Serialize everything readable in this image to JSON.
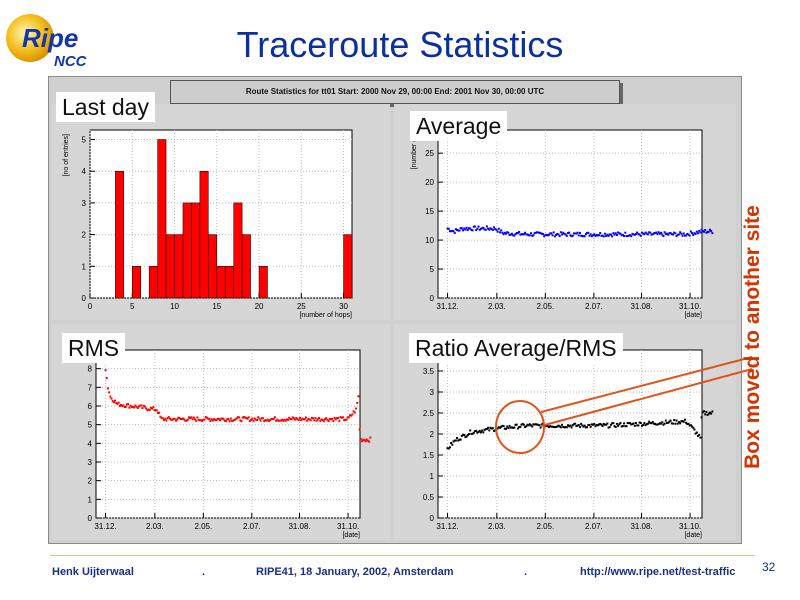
{
  "logo": {
    "ripe": "Ripe",
    "ncc": "NCC"
  },
  "title": "Traceroute Statistics",
  "root_title": "Route Statistics for tt01  Start: 2000 Nov 29,  00:00  End: 2001 Nov 30, 00:00 UTC",
  "labels": {
    "last_day": "Last day",
    "average": "Average",
    "rms": "RMS",
    "ratio": "Ratio Average/RMS"
  },
  "annotation": "Box moved to another site",
  "colors": {
    "title": "#0c2fa0",
    "bars": "#ff0000",
    "average": "#0000ff",
    "rms": "#ff0000",
    "ratio": "#000000",
    "annotation": "#d43500",
    "footer": "#1a2f8a"
  },
  "footer": {
    "author": "Henk Uijterwaal",
    "sep1": ".",
    "event": "RIPE41, 18 January, 2002, Amsterdam",
    "sep2": ".",
    "url": "http://www.ripe.net/test-traffic",
    "page": "32"
  },
  "chart_data": [
    {
      "type": "bar",
      "ylabel": "[no of entries]",
      "xlabel": "[number of hops]",
      "xlim": [
        0,
        31
      ],
      "ylim": [
        0,
        5.3
      ],
      "xticks": [
        0,
        5,
        10,
        15,
        20,
        25,
        30
      ],
      "yticks": [
        0,
        1,
        2,
        3,
        4,
        5
      ],
      "bins": [
        {
          "x": 3,
          "value": 4
        },
        {
          "x": 5,
          "value": 1
        },
        {
          "x": 7,
          "value": 1
        },
        {
          "x": 8,
          "value": 5
        },
        {
          "x": 9,
          "value": 2
        },
        {
          "x": 10,
          "value": 2
        },
        {
          "x": 11,
          "value": 3
        },
        {
          "x": 12,
          "value": 3
        },
        {
          "x": 13,
          "value": 4
        },
        {
          "x": 14,
          "value": 2
        },
        {
          "x": 15,
          "value": 1
        },
        {
          "x": 16,
          "value": 1
        },
        {
          "x": 17,
          "value": 3
        },
        {
          "x": 18,
          "value": 2
        },
        {
          "x": 20,
          "value": 1
        },
        {
          "x": 30,
          "value": 2
        }
      ]
    },
    {
      "type": "scatter",
      "ylabel": "[number of]",
      "xlabel": "[date]",
      "xticks": [
        "31.12.",
        "2.03.",
        "2.05.",
        "2.07.",
        "31.08.",
        "31.10."
      ],
      "ylim": [
        0,
        29
      ],
      "yticks": [
        0,
        5,
        10,
        15,
        20,
        25
      ],
      "x_span": [
        -12,
        320
      ],
      "x_tick_days": [
        0,
        62,
        123,
        184,
        244,
        305
      ],
      "x_range": [
        0,
        333
      ],
      "anchors": [
        [
          0,
          12
        ],
        [
          8,
          11.5
        ],
        [
          20,
          12
        ],
        [
          60,
          12
        ],
        [
          70,
          11.2
        ],
        [
          100,
          11
        ],
        [
          200,
          11
        ],
        [
          250,
          11
        ],
        [
          300,
          11
        ],
        [
          320,
          11.5
        ]
      ]
    },
    {
      "type": "scatter",
      "ylabel": "",
      "xlabel": "[date]",
      "xticks": [
        "31.12.",
        "2.03.",
        "2.05.",
        "2.07.",
        "31.08.",
        "31.10."
      ],
      "ylim": [
        0,
        9
      ],
      "yticks": [
        0,
        1,
        2,
        3,
        4,
        5,
        6,
        7,
        8
      ],
      "x_span": [
        -12,
        320
      ],
      "x_tick_days": [
        0,
        62,
        123,
        184,
        244,
        305
      ],
      "x_range": [
        0,
        333
      ],
      "anchors": [
        [
          0,
          8
        ],
        [
          3,
          7
        ],
        [
          6,
          6.5
        ],
        [
          15,
          6.1
        ],
        [
          50,
          5.9
        ],
        [
          65,
          5.8
        ],
        [
          70,
          5.3
        ],
        [
          200,
          5.3
        ],
        [
          240,
          5.3
        ],
        [
          305,
          5.3
        ],
        [
          315,
          5.8
        ],
        [
          318,
          6.5
        ],
        [
          320,
          4.2
        ]
      ]
    },
    {
      "type": "scatter",
      "ylabel": "",
      "xlabel": "[date]",
      "xticks": [
        "31.12.",
        "2.03.",
        "2.05.",
        "2.07.",
        "31.08.",
        "31.10."
      ],
      "ylim": [
        0,
        4
      ],
      "yticks": [
        0,
        0.5,
        1,
        1.5,
        2,
        2.5,
        3,
        3.5
      ],
      "x_span": [
        -12,
        320
      ],
      "x_tick_days": [
        0,
        62,
        123,
        184,
        244,
        305
      ],
      "x_range": [
        0,
        333
      ],
      "anchors": [
        [
          0,
          1.65
        ],
        [
          10,
          1.85
        ],
        [
          30,
          2.05
        ],
        [
          50,
          2.1
        ],
        [
          70,
          2.15
        ],
        [
          100,
          2.2
        ],
        [
          150,
          2.2
        ],
        [
          200,
          2.2
        ],
        [
          250,
          2.25
        ],
        [
          300,
          2.3
        ],
        [
          310,
          2.1
        ],
        [
          318,
          1.9
        ],
        [
          320,
          2.5
        ]
      ]
    }
  ]
}
